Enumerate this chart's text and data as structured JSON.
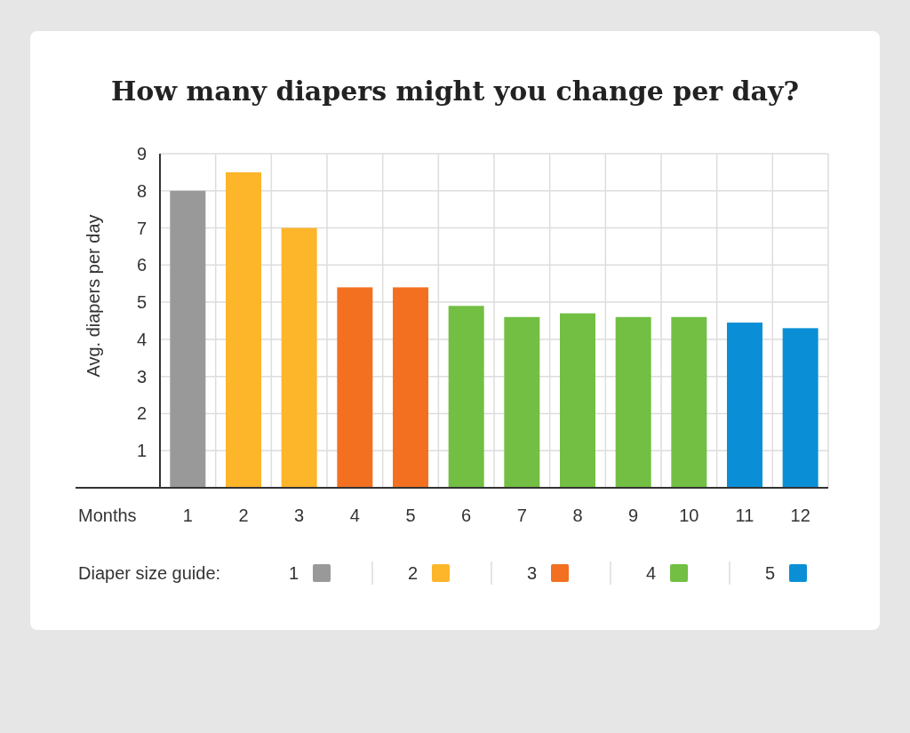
{
  "chart_data": {
    "type": "bar",
    "title": "How many diapers might you change per day?",
    "xlabel": "Months",
    "ylabel": "Avg. diapers per day",
    "legend_title": "Diaper size guide:",
    "categories": [
      "1",
      "2",
      "3",
      "4",
      "5",
      "6",
      "7",
      "8",
      "9",
      "10",
      "11",
      "12"
    ],
    "series": [
      {
        "name": "1",
        "color": "#999999",
        "values": [
          8,
          null,
          null,
          null,
          null,
          null,
          null,
          null,
          null,
          null,
          null,
          null
        ]
      },
      {
        "name": "2",
        "color": "#fdb52a",
        "values": [
          null,
          8.5,
          7,
          null,
          null,
          null,
          null,
          null,
          null,
          null,
          null,
          null
        ]
      },
      {
        "name": "3",
        "color": "#f37021",
        "values": [
          null,
          null,
          null,
          5.4,
          5.4,
          null,
          null,
          null,
          null,
          null,
          null,
          null
        ]
      },
      {
        "name": "4",
        "color": "#72bf44",
        "values": [
          null,
          null,
          null,
          null,
          null,
          4.9,
          4.6,
          4.7,
          4.6,
          4.6,
          null,
          null
        ]
      },
      {
        "name": "5",
        "color": "#0a8fd6",
        "values": [
          null,
          null,
          null,
          null,
          null,
          null,
          null,
          null,
          null,
          null,
          4.45,
          4.3
        ]
      }
    ],
    "ylim": [
      0,
      9
    ],
    "yticks": [
      1,
      2,
      3,
      4,
      5,
      6,
      7,
      8,
      9
    ],
    "grid": true,
    "legend": "bottom"
  }
}
